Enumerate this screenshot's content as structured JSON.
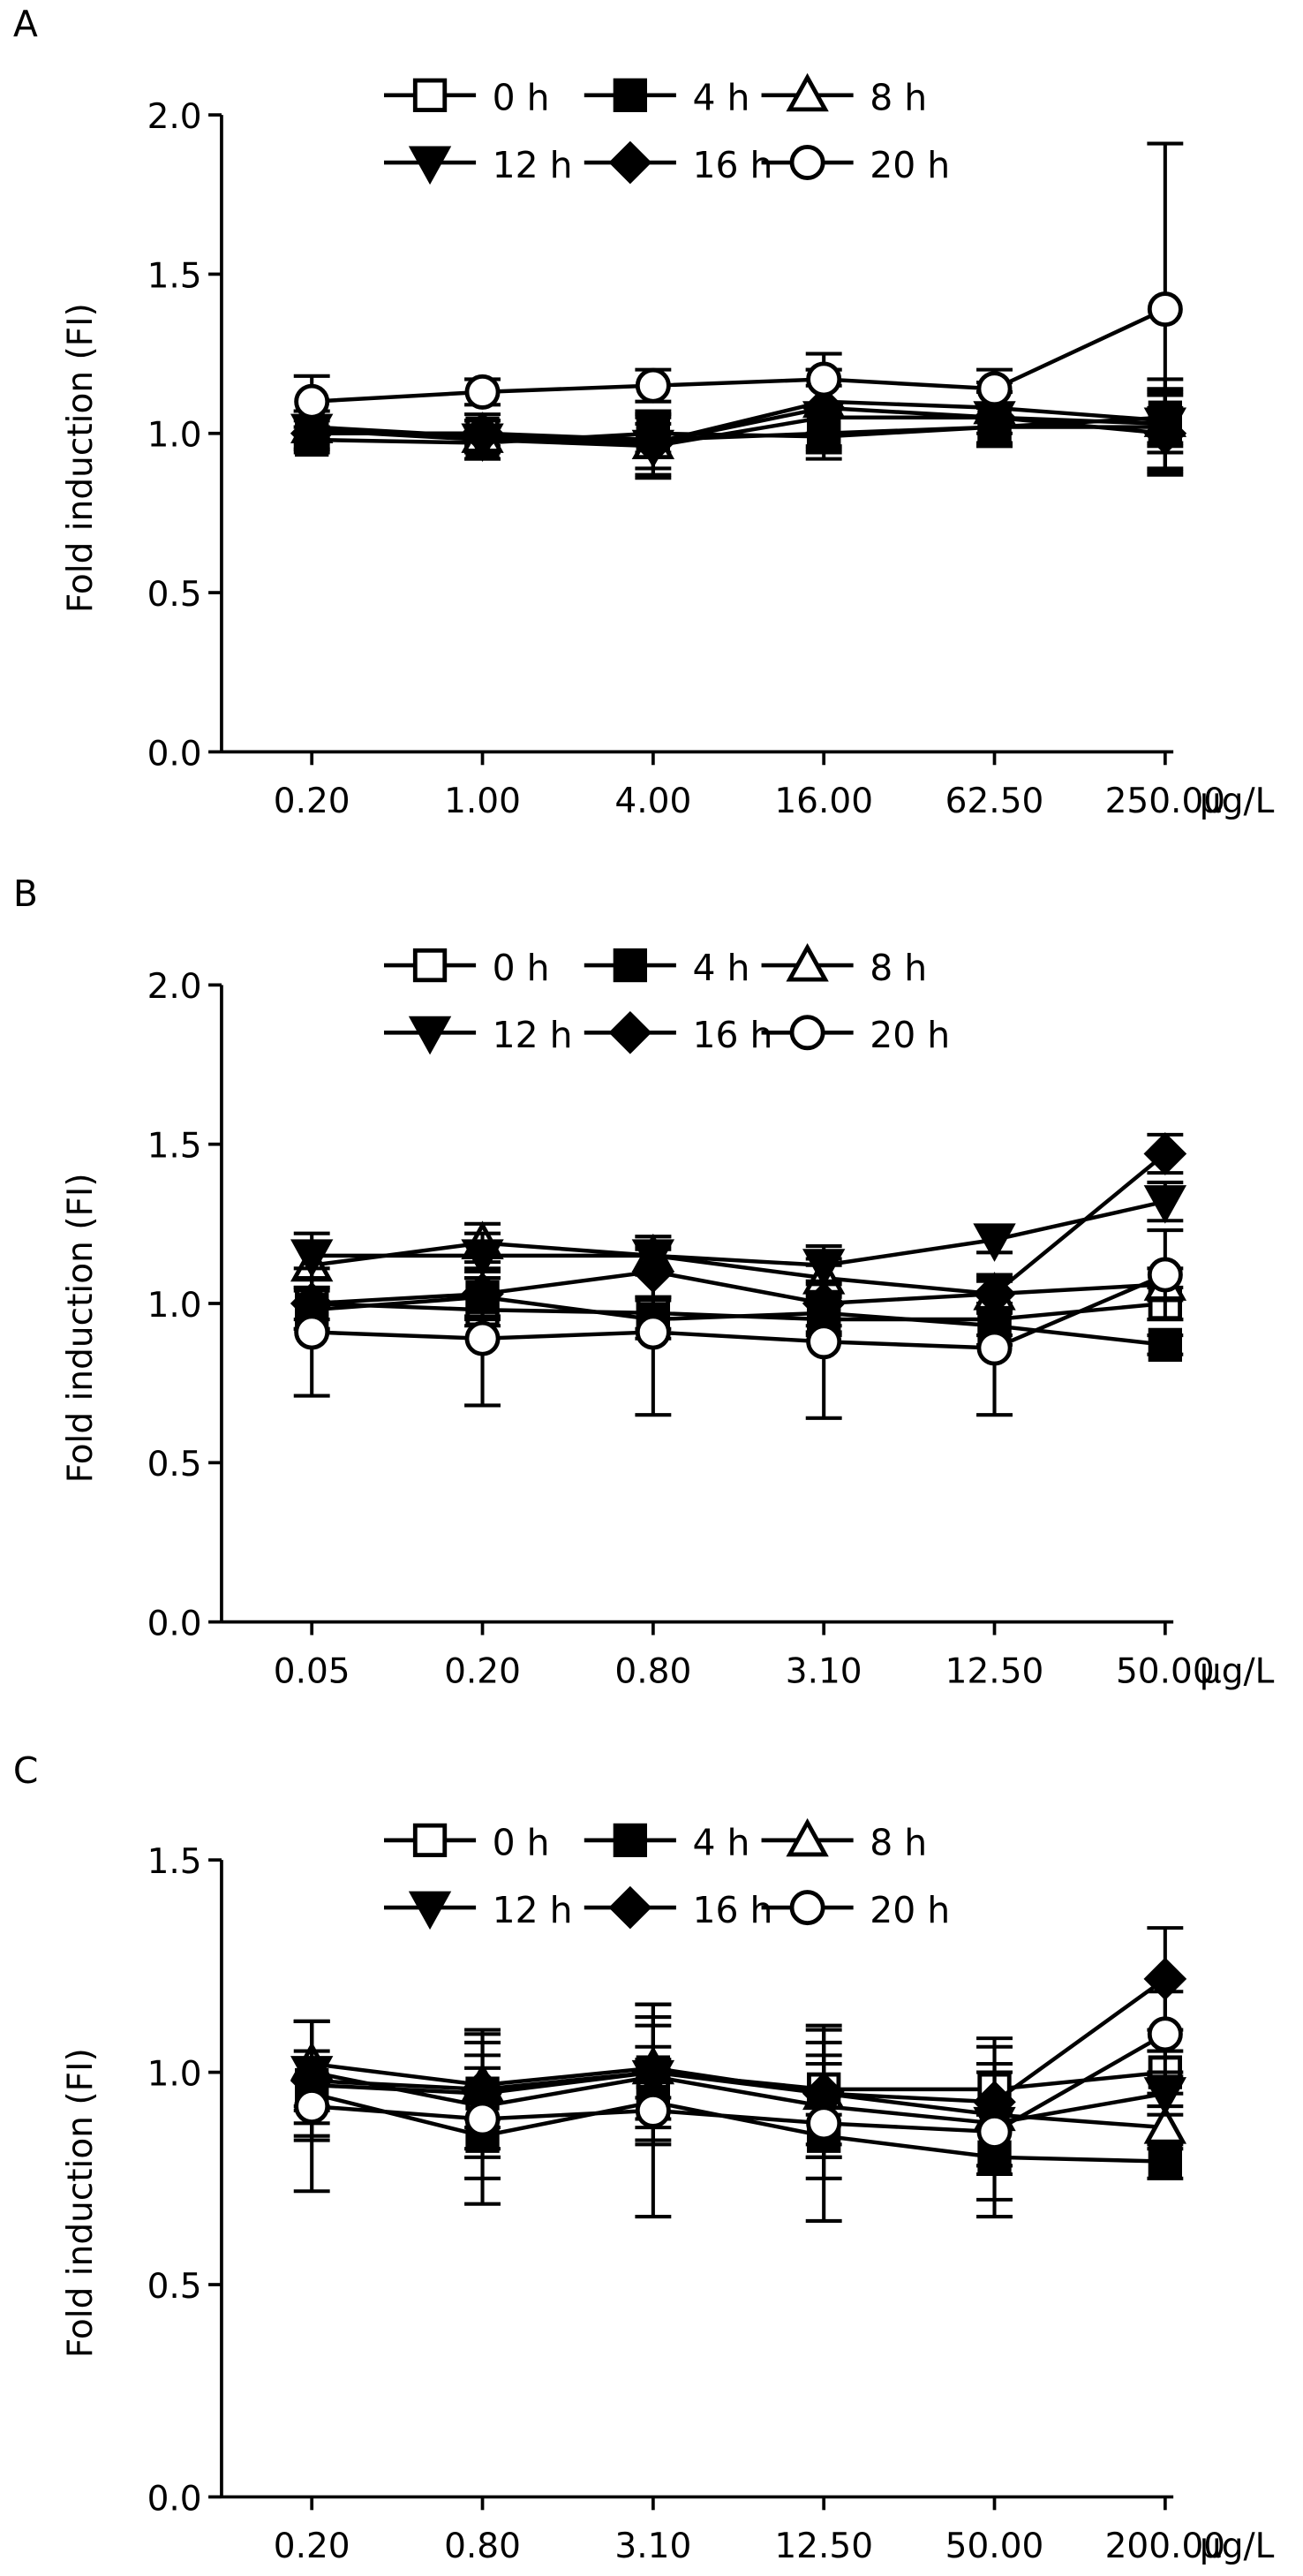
{
  "figure": {
    "legend": [
      {
        "label": "0 h",
        "marker": "square-open"
      },
      {
        "label": "4 h",
        "marker": "square-filled"
      },
      {
        "label": "8 h",
        "marker": "triangle-up-open"
      },
      {
        "label": "12 h",
        "marker": "triangle-down-filled"
      },
      {
        "label": "16 h",
        "marker": "diamond-filled"
      },
      {
        "label": "20 h",
        "marker": "circle-open"
      }
    ]
  },
  "chart_data": [
    {
      "panel": "A",
      "type": "line",
      "ylabel": "Fold induction (FI)",
      "xunit": "μg/L",
      "categories": [
        "0.20",
        "1.00",
        "4.00",
        "16.00",
        "62.50",
        "250.00"
      ],
      "ylim": [
        0,
        2.0
      ],
      "yticks": [
        "0.0",
        "0.5",
        "1.0",
        "1.5",
        "2.0"
      ],
      "series": [
        {
          "name": "0 h",
          "values": [
            1.0,
            1.0,
            0.98,
            1.0,
            1.02,
            1.02
          ],
          "err": [
            0.04,
            0.04,
            0.05,
            0.06,
            0.06,
            0.06
          ]
        },
        {
          "name": "4 h",
          "values": [
            0.98,
            0.97,
            1.0,
            0.99,
            1.02,
            1.05
          ],
          "err": [
            0.04,
            0.05,
            0.06,
            0.07,
            0.06,
            0.08
          ]
        },
        {
          "name": "8 h",
          "values": [
            1.02,
            0.99,
            0.97,
            1.1,
            1.08,
            1.04
          ],
          "err": [
            0.05,
            0.05,
            0.08,
            0.1,
            0.08,
            0.1
          ]
        },
        {
          "name": "12 h",
          "values": [
            1.01,
            0.98,
            0.96,
            1.05,
            1.05,
            1.03
          ],
          "err": [
            0.06,
            0.06,
            0.1,
            0.1,
            0.08,
            0.14
          ]
        },
        {
          "name": "16 h",
          "values": [
            1.0,
            1.0,
            0.97,
            1.08,
            1.05,
            1.0
          ],
          "err": [
            0.05,
            0.06,
            0.1,
            0.12,
            0.08,
            0.12
          ]
        },
        {
          "name": "20 h",
          "values": [
            1.1,
            1.13,
            1.15,
            1.17,
            1.14,
            1.39
          ],
          "err": [
            0.08,
            0.04,
            0.05,
            0.08,
            0.06,
            0.52
          ]
        }
      ]
    },
    {
      "panel": "B",
      "type": "line",
      "ylabel": "Fold induction (FI)",
      "xunit": "μg/L",
      "categories": [
        "0.05",
        "0.20",
        "0.80",
        "3.10",
        "12.50",
        "50.00"
      ],
      "ylim": [
        0,
        2.0
      ],
      "yticks": [
        "0.0",
        "0.5",
        "1.0",
        "1.5",
        "2.0"
      ],
      "series": [
        {
          "name": "0 h",
          "values": [
            1.0,
            0.98,
            0.97,
            0.95,
            0.95,
            1.0
          ],
          "err": [
            0.05,
            0.05,
            0.05,
            0.05,
            0.05,
            0.05
          ]
        },
        {
          "name": "4 h",
          "values": [
            0.98,
            1.02,
            0.95,
            0.97,
            0.93,
            0.87
          ],
          "err": [
            0.06,
            0.06,
            0.06,
            0.06,
            0.06,
            0.03
          ]
        },
        {
          "name": "8 h",
          "values": [
            1.12,
            1.19,
            1.15,
            1.08,
            1.03,
            1.06
          ],
          "err": [
            0.07,
            0.06,
            0.06,
            0.06,
            0.05,
            0.05
          ]
        },
        {
          "name": "12 h",
          "values": [
            1.15,
            1.15,
            1.15,
            1.12,
            1.2,
            1.32
          ],
          "err": [
            0.07,
            0.07,
            0.06,
            0.06,
            0.04,
            0.06
          ]
        },
        {
          "name": "16 h",
          "values": [
            1.0,
            1.03,
            1.1,
            1.0,
            1.03,
            1.47
          ],
          "err": [
            0.08,
            0.08,
            0.08,
            0.07,
            0.06,
            0.06
          ]
        },
        {
          "name": "20 h",
          "values": [
            0.91,
            0.89,
            0.91,
            0.88,
            0.86,
            1.09
          ],
          "err": [
            0.2,
            0.21,
            0.26,
            0.24,
            0.21,
            0.14
          ]
        }
      ]
    },
    {
      "panel": "C",
      "type": "line",
      "ylabel": "Fold induction (FI)",
      "xunit": "μg/L",
      "categories": [
        "0.20",
        "0.80",
        "3.10",
        "12.50",
        "50.00",
        "200.00"
      ],
      "ylim": [
        0,
        1.5
      ],
      "yticks": [
        "0.0",
        "0.5",
        "1.0",
        "1.5"
      ],
      "series": [
        {
          "name": "0 h",
          "values": [
            0.97,
            0.95,
            1.0,
            0.96,
            0.96,
            1.0
          ],
          "err": [
            0.06,
            0.06,
            0.06,
            0.06,
            0.06,
            0.05
          ]
        },
        {
          "name": "4 h",
          "values": [
            0.95,
            0.85,
            0.93,
            0.85,
            0.8,
            0.79
          ],
          "err": [
            0.1,
            0.1,
            0.1,
            0.1,
            0.1,
            0.04
          ]
        },
        {
          "name": "8 h",
          "values": [
            1.02,
            0.97,
            1.01,
            0.95,
            0.9,
            0.87
          ],
          "err": [
            0.1,
            0.1,
            0.12,
            0.12,
            0.12,
            0.05
          ]
        },
        {
          "name": "12 h",
          "values": [
            1.0,
            0.92,
            0.99,
            0.92,
            0.88,
            0.95
          ],
          "err": [
            0.12,
            0.12,
            0.12,
            0.12,
            0.12,
            0.05
          ]
        },
        {
          "name": "16 h",
          "values": [
            0.98,
            0.96,
            1.0,
            0.95,
            0.93,
            1.22
          ],
          "err": [
            0.14,
            0.14,
            0.16,
            0.15,
            0.15,
            0.12
          ]
        },
        {
          "name": "20 h",
          "values": [
            0.92,
            0.89,
            0.91,
            0.88,
            0.86,
            1.09
          ],
          "err": [
            0.2,
            0.2,
            0.25,
            0.23,
            0.2,
            0.1
          ]
        }
      ]
    }
  ]
}
